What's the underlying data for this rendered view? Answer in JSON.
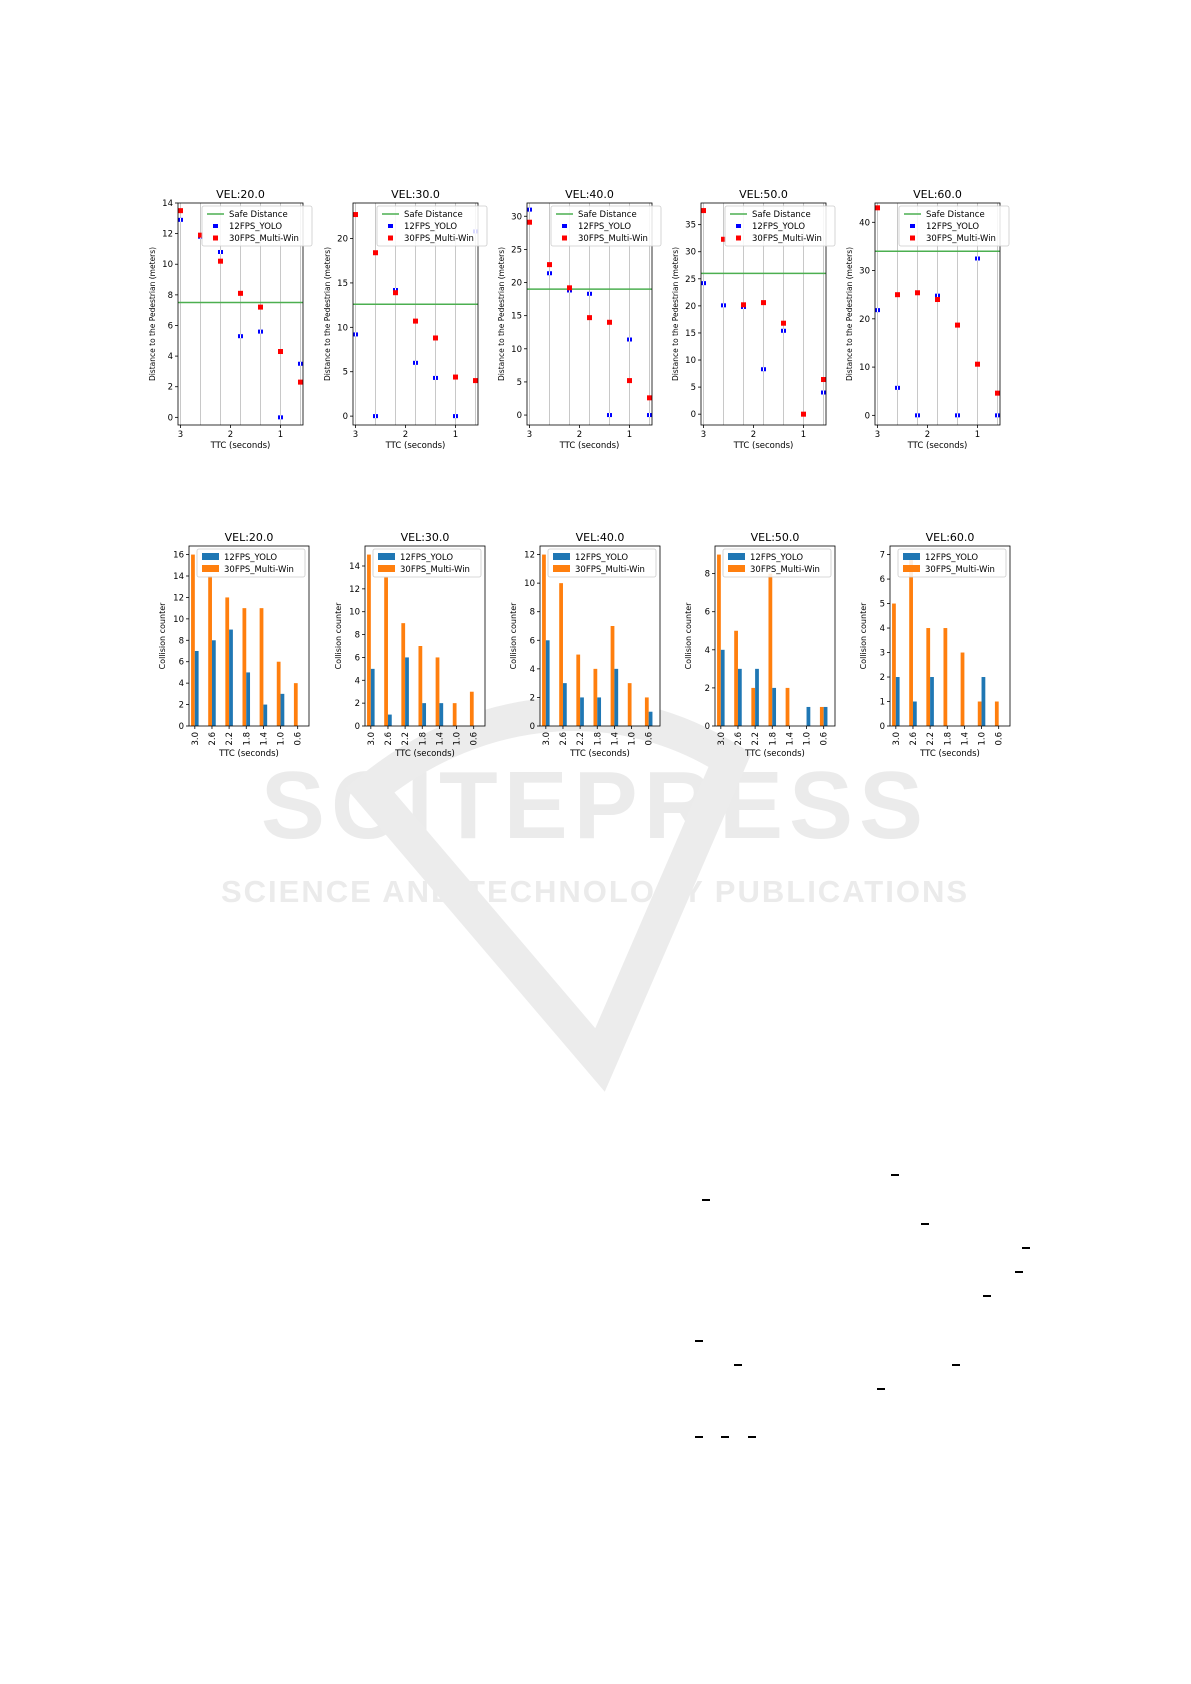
{
  "watermark": {
    "big": "SCITEPRESS",
    "small": "SCIENCE AND TECHNOLOGY PUBLICATIONS"
  },
  "chart_data": [
    {
      "type": "scatter",
      "title": "VEL:20.0",
      "xlabel": "TTC (seconds)",
      "ylabel": "Distance to the Pedestrian (meters)",
      "xlim": [
        3.05,
        0.55
      ],
      "ylim": [
        -0.5,
        14
      ],
      "xticks": [
        3,
        2,
        1
      ],
      "yticks": [
        0,
        2,
        4,
        6,
        8,
        10,
        12,
        14
      ],
      "x": [
        3.0,
        2.6,
        2.2,
        1.8,
        1.4,
        1.0,
        0.6
      ],
      "safe_distance": 7.5,
      "series": [
        {
          "name": "12FPS_YOLO",
          "values": [
            12.9,
            11.8,
            10.8,
            5.3,
            5.6,
            0.0,
            3.5
          ]
        },
        {
          "name": "30FPS_Multi-Win",
          "values": [
            13.5,
            11.9,
            10.2,
            8.1,
            7.2,
            4.3,
            2.3
          ]
        }
      ],
      "legend": [
        "Safe Distance",
        "12FPS_YOLO",
        "30FPS_Multi-Win"
      ],
      "legend_loc": "upper right"
    },
    {
      "type": "scatter",
      "title": "VEL:30.0",
      "xlabel": "TTC (seconds)",
      "ylabel": "Distance to the Pedestrian (meters)",
      "xlim": [
        3.05,
        0.55
      ],
      "ylim": [
        -1,
        24
      ],
      "xticks": [
        3,
        2,
        1
      ],
      "yticks": [
        0,
        5,
        10,
        15,
        20
      ],
      "x": [
        3.0,
        2.6,
        2.2,
        1.8,
        1.4,
        1.0,
        0.6
      ],
      "safe_distance": 12.6,
      "series": [
        {
          "name": "12FPS_YOLO",
          "values": [
            9.2,
            0.0,
            14.2,
            6.0,
            4.3,
            0.0,
            20.8
          ]
        },
        {
          "name": "30FPS_Multi-Win",
          "values": [
            22.7,
            18.4,
            13.9,
            10.7,
            8.8,
            4.4,
            4.0
          ]
        }
      ],
      "legend": [
        "Safe Distance",
        "12FPS_YOLO",
        "30FPS_Multi-Win"
      ],
      "legend_loc": "upper right"
    },
    {
      "type": "scatter",
      "title": "VEL:40.0",
      "xlabel": "TTC (seconds)",
      "ylabel": "Distance to the Pedestrian (meters)",
      "xlim": [
        3.05,
        0.55
      ],
      "ylim": [
        -1.5,
        32
      ],
      "xticks": [
        3,
        2,
        1
      ],
      "yticks": [
        0,
        5,
        10,
        15,
        20,
        25,
        30
      ],
      "x": [
        3.0,
        2.6,
        2.2,
        1.8,
        1.4,
        1.0,
        0.6
      ],
      "safe_distance": 19,
      "series": [
        {
          "name": "12FPS_YOLO",
          "values": [
            31.0,
            21.4,
            18.8,
            18.3,
            0.0,
            11.4,
            0.0
          ]
        },
        {
          "name": "30FPS_Multi-Win",
          "values": [
            29.1,
            22.7,
            19.2,
            14.7,
            14.0,
            5.2,
            2.6
          ]
        }
      ],
      "legend": [
        "Safe Distance",
        "12FPS_YOLO",
        "30FPS_Multi-Win"
      ],
      "legend_loc": "upper right"
    },
    {
      "type": "scatter",
      "title": "VEL:50.0",
      "xlabel": "TTC (seconds)",
      "ylabel": "Distance to the Pedestrian (meters)",
      "xlim": [
        3.05,
        0.55
      ],
      "ylim": [
        -2,
        39
      ],
      "xticks": [
        3,
        2,
        1
      ],
      "yticks": [
        0,
        5,
        10,
        15,
        20,
        25,
        30,
        35
      ],
      "x": [
        3.0,
        2.6,
        2.2,
        1.8,
        1.4,
        1.0,
        0.6
      ],
      "safe_distance": 26,
      "series": [
        {
          "name": "12FPS_YOLO",
          "values": [
            24.2,
            20.1,
            19.8,
            8.3,
            15.4,
            0.0,
            4.0
          ]
        },
        {
          "name": "30FPS_Multi-Win",
          "values": [
            37.6,
            32.3,
            20.2,
            20.6,
            16.8,
            0.0,
            6.4
          ]
        }
      ],
      "legend": [
        "Safe Distance",
        "12FPS_YOLO",
        "30FPS_Multi-Win"
      ],
      "legend_loc": "upper right"
    },
    {
      "type": "scatter",
      "title": "VEL:60.0",
      "xlabel": "TTC (seconds)",
      "ylabel": "Distance to the Pedestrian (meters)",
      "xlim": [
        3.05,
        0.55
      ],
      "ylim": [
        -2,
        44
      ],
      "xticks": [
        3,
        2,
        1
      ],
      "yticks": [
        0,
        10,
        20,
        30,
        40
      ],
      "x": [
        3.0,
        2.6,
        2.2,
        1.8,
        1.4,
        1.0,
        0.6
      ],
      "safe_distance": 34,
      "series": [
        {
          "name": "12FPS_YOLO",
          "values": [
            21.8,
            5.7,
            0.0,
            24.8,
            0.0,
            32.5,
            0.0
          ]
        },
        {
          "name": "30FPS_Multi-Win",
          "values": [
            43.0,
            25.0,
            25.4,
            24.0,
            18.7,
            10.6,
            4.6
          ]
        }
      ],
      "legend": [
        "Safe Distance",
        "12FPS_YOLO",
        "30FPS_Multi-Win"
      ],
      "legend_loc": "upper right"
    },
    {
      "type": "bar",
      "title": "VEL:20.0",
      "xlabel": "TTC (seconds)",
      "ylabel": "Collision counter",
      "categories": [
        "3.0",
        "2.6",
        "2.2",
        "1.8",
        "1.4",
        "1.0",
        "0.6"
      ],
      "ylim": [
        0,
        16.8
      ],
      "yticks": [
        0,
        2,
        4,
        6,
        8,
        10,
        12,
        14,
        16
      ],
      "series": [
        {
          "name": "12FPS_YOLO",
          "values": [
            7,
            8,
            9,
            5,
            2,
            3,
            0
          ]
        },
        {
          "name": "30FPS_Multi-Win",
          "values": [
            16,
            14,
            12,
            11,
            11,
            6,
            4
          ]
        }
      ],
      "legend_loc": "upper right"
    },
    {
      "type": "bar",
      "title": "VEL:30.0",
      "xlabel": "TTC (seconds)",
      "ylabel": "Collision counter",
      "categories": [
        "3.0",
        "2.6",
        "2.2",
        "1.8",
        "1.4",
        "1.0",
        "0.6"
      ],
      "ylim": [
        0,
        15.75
      ],
      "yticks": [
        0,
        2,
        4,
        6,
        8,
        10,
        12,
        14
      ],
      "series": [
        {
          "name": "12FPS_YOLO",
          "values": [
            5,
            1,
            6,
            2,
            2,
            0,
            0
          ]
        },
        {
          "name": "30FPS_Multi-Win",
          "values": [
            15,
            13,
            9,
            7,
            6,
            2,
            3
          ]
        }
      ],
      "legend_loc": "upper right"
    },
    {
      "type": "bar",
      "title": "VEL:40.0",
      "xlabel": "TTC (seconds)",
      "ylabel": "Collision counter",
      "categories": [
        "3.0",
        "2.6",
        "2.2",
        "1.8",
        "1.4",
        "1.0",
        "0.6"
      ],
      "ylim": [
        0,
        12.6
      ],
      "yticks": [
        0,
        2,
        4,
        6,
        8,
        10,
        12
      ],
      "series": [
        {
          "name": "12FPS_YOLO",
          "values": [
            6,
            3,
            2,
            2,
            4,
            0,
            1
          ]
        },
        {
          "name": "30FPS_Multi-Win",
          "values": [
            12,
            10,
            5,
            4,
            7,
            3,
            2
          ]
        }
      ],
      "legend_loc": "upper right"
    },
    {
      "type": "bar",
      "title": "VEL:50.0",
      "xlabel": "TTC (seconds)",
      "ylabel": "Collision counter",
      "categories": [
        "3.0",
        "2.6",
        "2.2",
        "1.8",
        "1.4",
        "1.0",
        "0.6"
      ],
      "ylim": [
        0,
        9.45
      ],
      "yticks": [
        0,
        2,
        4,
        6,
        8
      ],
      "series": [
        {
          "name": "12FPS_YOLO",
          "values": [
            4,
            3,
            3,
            2,
            0,
            1,
            1
          ]
        },
        {
          "name": "30FPS_Multi-Win",
          "values": [
            9,
            5,
            2,
            8,
            2,
            0,
            1
          ]
        }
      ],
      "legend_loc": "upper right"
    },
    {
      "type": "bar",
      "title": "VEL:60.0",
      "xlabel": "TTC (seconds)",
      "ylabel": "Collision counter",
      "categories": [
        "3.0",
        "2.6",
        "2.2",
        "1.8",
        "1.4",
        "1.0",
        "0.6"
      ],
      "ylim": [
        0,
        7.35
      ],
      "yticks": [
        0,
        1,
        2,
        3,
        4,
        5,
        6,
        7
      ],
      "series": [
        {
          "name": "12FPS_YOLO",
          "values": [
            2,
            1,
            2,
            0,
            0,
            2,
            0
          ]
        },
        {
          "name": "30FPS_Multi-Win",
          "values": [
            5,
            7,
            4,
            4,
            3,
            1,
            1
          ]
        }
      ],
      "legend_loc": "upper right"
    }
  ],
  "colors": {
    "safe_line": "#4caf50",
    "yolo_marker": "#0000ff",
    "multiwin_marker": "#ff0000",
    "yolo_bar": "#1f77b4",
    "multiwin_bar": "#ff7f0e",
    "grid_line": "#c8c8c8"
  }
}
